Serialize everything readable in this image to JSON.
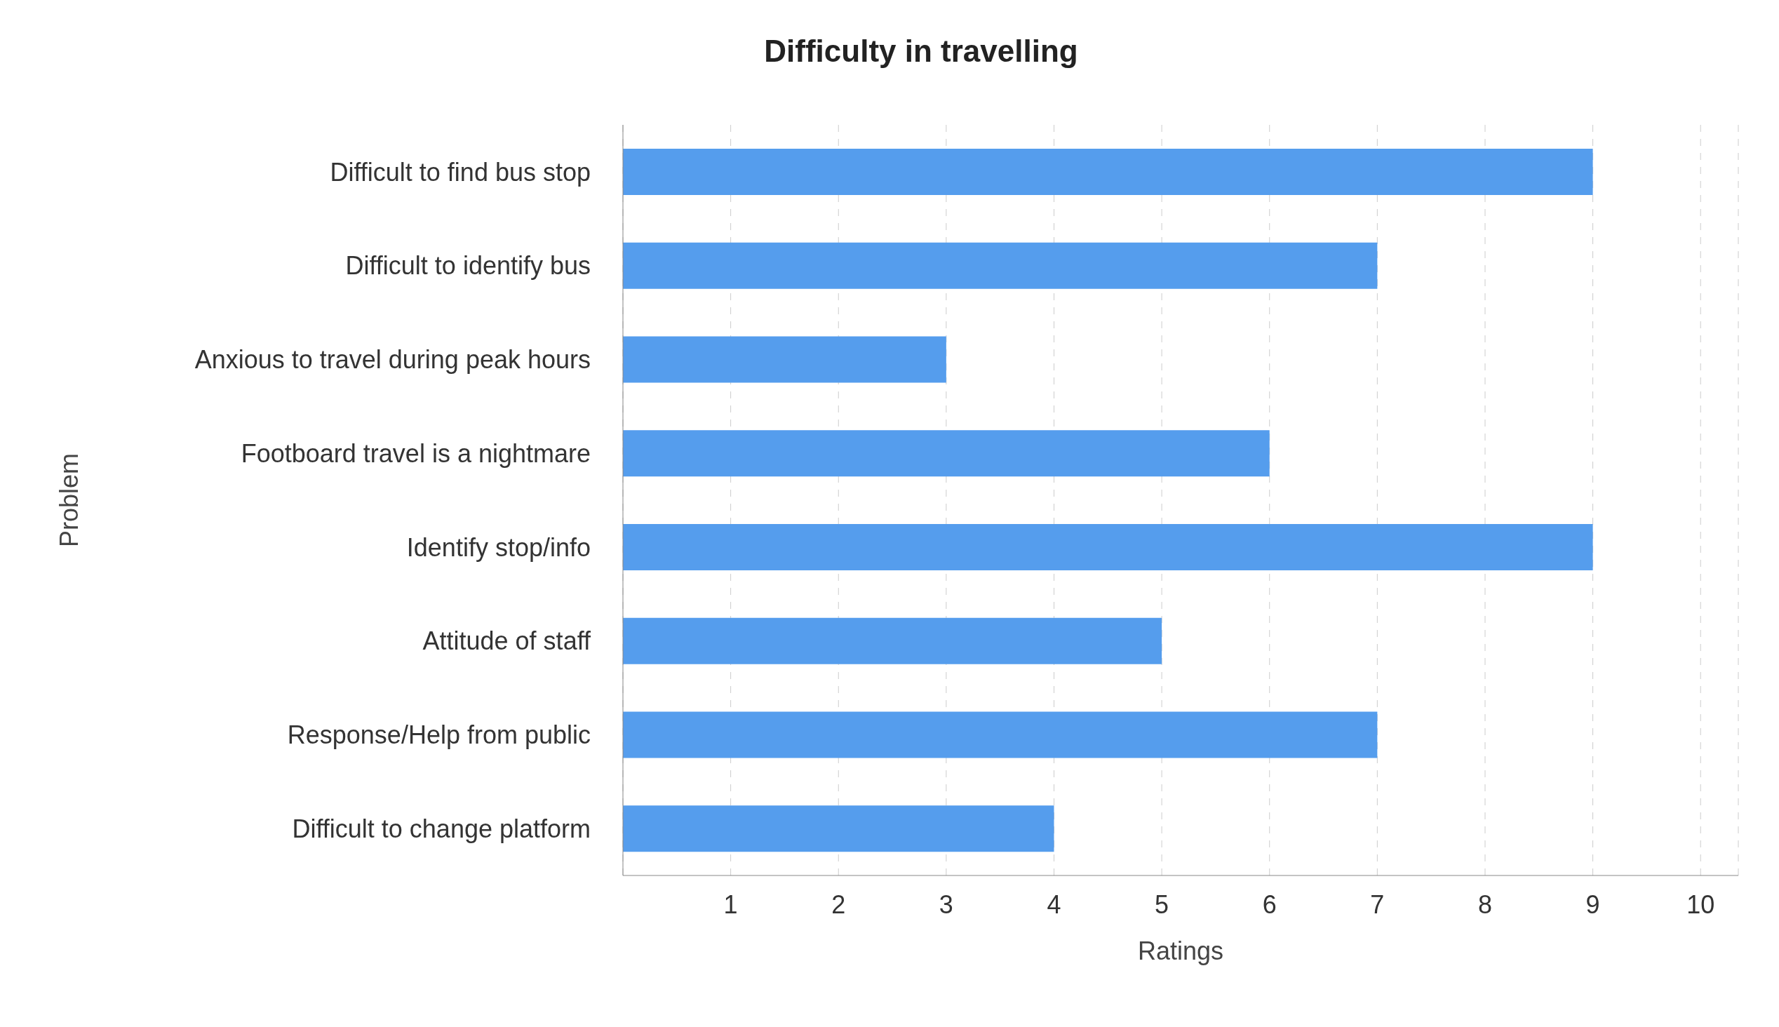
{
  "chart_data": {
    "type": "bar",
    "orientation": "horizontal",
    "title": "Difficulty in travelling",
    "xlabel": "Ratings",
    "ylabel": "Problem",
    "categories": [
      "Difficult to find bus stop",
      "Difficult to identify bus",
      "Anxious to travel during peak hours",
      "Footboard travel is a nightmare",
      "Identify stop/info",
      "Attitude of staff",
      "Response/Help from public",
      "Difficult to change platform"
    ],
    "values": [
      9,
      7,
      3,
      6,
      9,
      5,
      7,
      4
    ],
    "color": "#559ded",
    "xlim": [
      0,
      10.35
    ],
    "xticks": [
      1,
      2,
      3,
      4,
      5,
      6,
      7,
      8,
      9,
      10
    ],
    "grid": "x"
  }
}
